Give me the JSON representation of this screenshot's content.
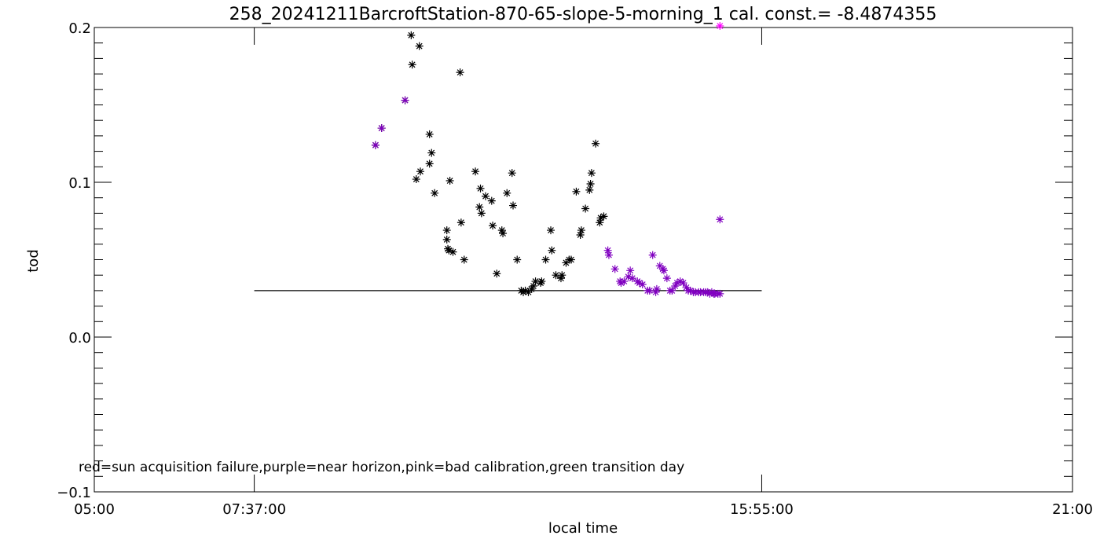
{
  "chart_data": {
    "type": "scatter",
    "title": "258_20241211BarcroftStation-870-65-slope-5-morning_1 cal. const.= -8.4874355",
    "xlabel": "local time",
    "ylabel": "tod",
    "xlim": [
      "05:00",
      "21:00"
    ],
    "ylim": [
      -0.1,
      0.2
    ],
    "x_ticks": [
      "05:00",
      "07:37:00",
      "15:55:00",
      "21:00"
    ],
    "y_ticks": [
      "0.2",
      "0.1",
      "0.0",
      "-0.1"
    ],
    "legend_note": "red=sun acquisition failure,purple=near horizon,pink=bad calibration,green transition day",
    "reference_line": {
      "y": 0.03,
      "x_start": "07:37:00",
      "x_end": "15:55:00",
      "color": "#000000"
    },
    "series": [
      {
        "color": "#000000",
        "points": [
          [
            "09:36",
            0.124
          ],
          [
            "09:42",
            0.135
          ],
          [
            "10:05",
            0.153
          ],
          [
            "10:11",
            0.195
          ],
          [
            "10:12",
            0.176
          ],
          [
            "10:16",
            0.102
          ],
          [
            "10:19",
            0.188
          ],
          [
            "10:20",
            0.107
          ],
          [
            "10:29",
            0.131
          ],
          [
            "10:29",
            0.112
          ],
          [
            "10:31",
            0.119
          ],
          [
            "10:34",
            0.093
          ],
          [
            "10:46",
            0.069
          ],
          [
            "10:46",
            0.063
          ],
          [
            "10:47",
            0.057
          ],
          [
            "10:48",
            0.056
          ],
          [
            "10:49",
            0.101
          ],
          [
            "10:52",
            0.055
          ],
          [
            "10:59",
            0.171
          ],
          [
            "11:00",
            0.074
          ],
          [
            "11:03",
            0.05
          ],
          [
            "11:14",
            0.107
          ],
          [
            "11:18",
            0.084
          ],
          [
            "11:19",
            0.096
          ],
          [
            "11:20",
            0.08
          ],
          [
            "11:24",
            0.091
          ],
          [
            "11:30",
            0.088
          ],
          [
            "11:31",
            0.072
          ],
          [
            "11:35",
            0.041
          ],
          [
            "11:40",
            0.069
          ],
          [
            "11:41",
            0.067
          ],
          [
            "11:45",
            0.093
          ],
          [
            "11:50",
            0.106
          ],
          [
            "11:51",
            0.085
          ],
          [
            "11:55",
            0.05
          ],
          [
            "11:59",
            0.03
          ],
          [
            "12:01",
            0.029
          ],
          [
            "12:03",
            0.03
          ],
          [
            "12:06",
            0.029
          ],
          [
            "12:09",
            0.031
          ],
          [
            "12:11",
            0.033
          ],
          [
            "12:13",
            0.036
          ],
          [
            "12:18",
            0.035
          ],
          [
            "12:19",
            0.036
          ],
          [
            "12:23",
            0.05
          ],
          [
            "12:28",
            0.069
          ],
          [
            "12:29",
            0.056
          ],
          [
            "12:33",
            0.04
          ],
          [
            "12:38",
            0.038
          ],
          [
            "12:39",
            0.04
          ],
          [
            "12:43",
            0.048
          ],
          [
            "12:46",
            0.05
          ],
          [
            "12:48",
            0.05
          ],
          [
            "12:53",
            0.094
          ],
          [
            "12:57",
            0.066
          ],
          [
            "12:58",
            0.069
          ],
          [
            "13:02",
            0.083
          ],
          [
            "13:06",
            0.095
          ],
          [
            "13:07",
            0.099
          ],
          [
            "13:08",
            0.106
          ],
          [
            "13:12",
            0.125
          ],
          [
            "13:16",
            0.074
          ],
          [
            "13:17",
            0.077
          ],
          [
            "13:20",
            0.078
          ]
        ]
      },
      {
        "color": "#8000c0",
        "points": [
          [
            "09:36",
            0.124
          ],
          [
            "09:42",
            0.135
          ],
          [
            "10:05",
            0.153
          ],
          [
            "13:24",
            0.056
          ],
          [
            "13:25",
            0.053
          ],
          [
            "13:31",
            0.044
          ],
          [
            "13:36",
            0.036
          ],
          [
            "13:37",
            0.035
          ],
          [
            "13:40",
            0.036
          ],
          [
            "13:44",
            0.039
          ],
          [
            "13:46",
            0.043
          ],
          [
            "13:48",
            0.038
          ],
          [
            "13:53",
            0.036
          ],
          [
            "13:55",
            0.035
          ],
          [
            "13:58",
            0.034
          ],
          [
            "14:03",
            0.03
          ],
          [
            "14:05",
            0.03
          ],
          [
            "14:08",
            0.053
          ],
          [
            "14:11",
            0.029
          ],
          [
            "14:12",
            0.031
          ],
          [
            "14:15",
            0.046
          ],
          [
            "14:18",
            0.044
          ],
          [
            "14:19",
            0.043
          ],
          [
            "14:22",
            0.038
          ],
          [
            "14:25",
            0.03
          ],
          [
            "14:27",
            0.03
          ],
          [
            "14:30",
            0.033
          ],
          [
            "14:32",
            0.035
          ],
          [
            "14:35",
            0.036
          ],
          [
            "14:38",
            0.035
          ],
          [
            "14:41",
            0.032
          ],
          [
            "14:43",
            0.03
          ],
          [
            "14:45",
            0.03
          ],
          [
            "14:48",
            0.029
          ],
          [
            "14:50",
            0.029
          ],
          [
            "14:53",
            0.029
          ],
          [
            "14:55",
            0.029
          ],
          [
            "14:58",
            0.029
          ],
          [
            "15:00",
            0.029
          ],
          [
            "15:02",
            0.029
          ],
          [
            "15:04",
            0.028
          ],
          [
            "15:06",
            0.029
          ],
          [
            "15:08",
            0.028
          ],
          [
            "15:09",
            0.028
          ],
          [
            "15:12",
            0.028
          ],
          [
            "15:14",
            0.028
          ],
          [
            "15:14",
            0.076
          ]
        ]
      },
      {
        "color": "#ff00ff",
        "points": [
          [
            "15:14",
            0.201
          ]
        ]
      }
    ]
  }
}
